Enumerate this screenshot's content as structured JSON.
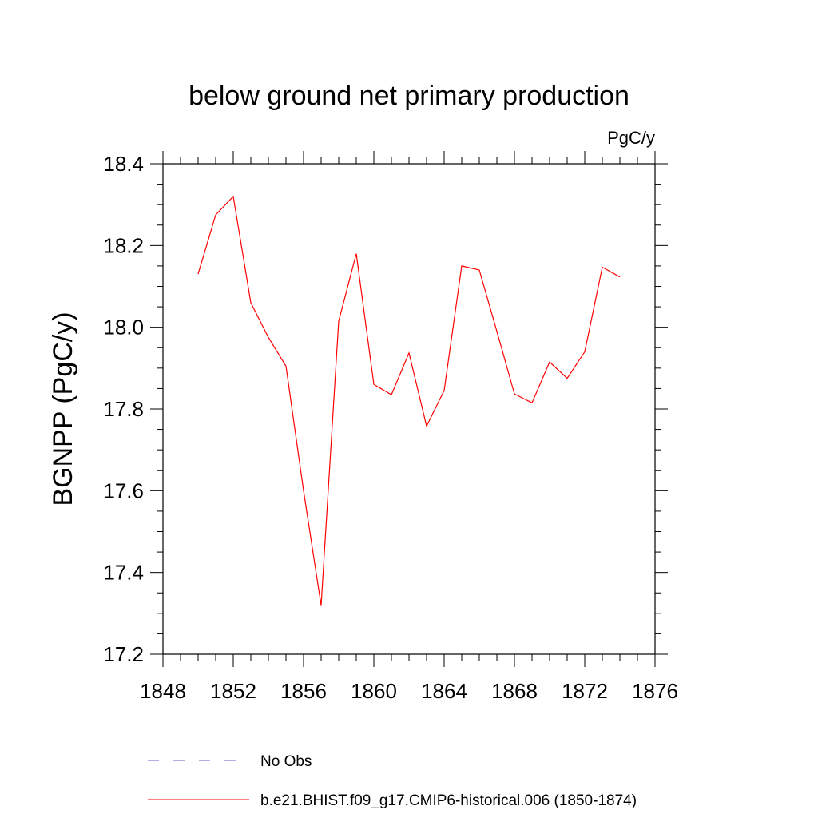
{
  "chart_data": {
    "type": "line",
    "title": "below ground net primary production",
    "units_label": "PgC/y",
    "ylabel": "BGNPP  (PgC/y)",
    "xlabel": "",
    "xlim": [
      1848,
      1876
    ],
    "ylim": [
      17.2,
      18.4
    ],
    "x_ticks": [
      1848,
      1852,
      1856,
      1860,
      1864,
      1868,
      1872,
      1876
    ],
    "y_ticks": [
      17.2,
      17.4,
      17.6,
      17.8,
      18.0,
      18.2,
      18.4
    ],
    "x_tick_labels": [
      "1848",
      "1852",
      "1856",
      "1860",
      "1864",
      "1868",
      "1872",
      "1876"
    ],
    "y_tick_labels": [
      "17.2",
      "17.4",
      "17.6",
      "17.8",
      "18.0",
      "18.2",
      "18.4"
    ],
    "grid": false,
    "legend_position": "bottom",
    "series": [
      {
        "name": "b.e21.BHIST.f09_g17.CMIP6-historical.006 (1850-1874)",
        "color": "#ff0000",
        "style": "solid",
        "x": [
          1850,
          1851,
          1852,
          1853,
          1854,
          1855,
          1856,
          1857,
          1858,
          1859,
          1860,
          1861,
          1862,
          1863,
          1864,
          1865,
          1866,
          1867,
          1868,
          1869,
          1870,
          1871,
          1872,
          1873,
          1874
        ],
        "y": [
          18.13,
          18.275,
          18.32,
          18.06,
          17.975,
          17.905,
          17.6,
          17.32,
          18.015,
          18.18,
          17.86,
          17.835,
          17.937,
          17.758,
          17.845,
          18.15,
          18.14,
          17.99,
          17.837,
          17.815,
          17.915,
          17.875,
          17.94,
          18.147,
          18.123
        ]
      }
    ],
    "legend": [
      {
        "label": "No Obs",
        "color": "#6a5acd",
        "style": "dashed"
      },
      {
        "label": "b.e21.BHIST.f09_g17.CMIP6-historical.006 (1850-1874)",
        "color": "#ff0000",
        "style": "solid"
      }
    ]
  }
}
